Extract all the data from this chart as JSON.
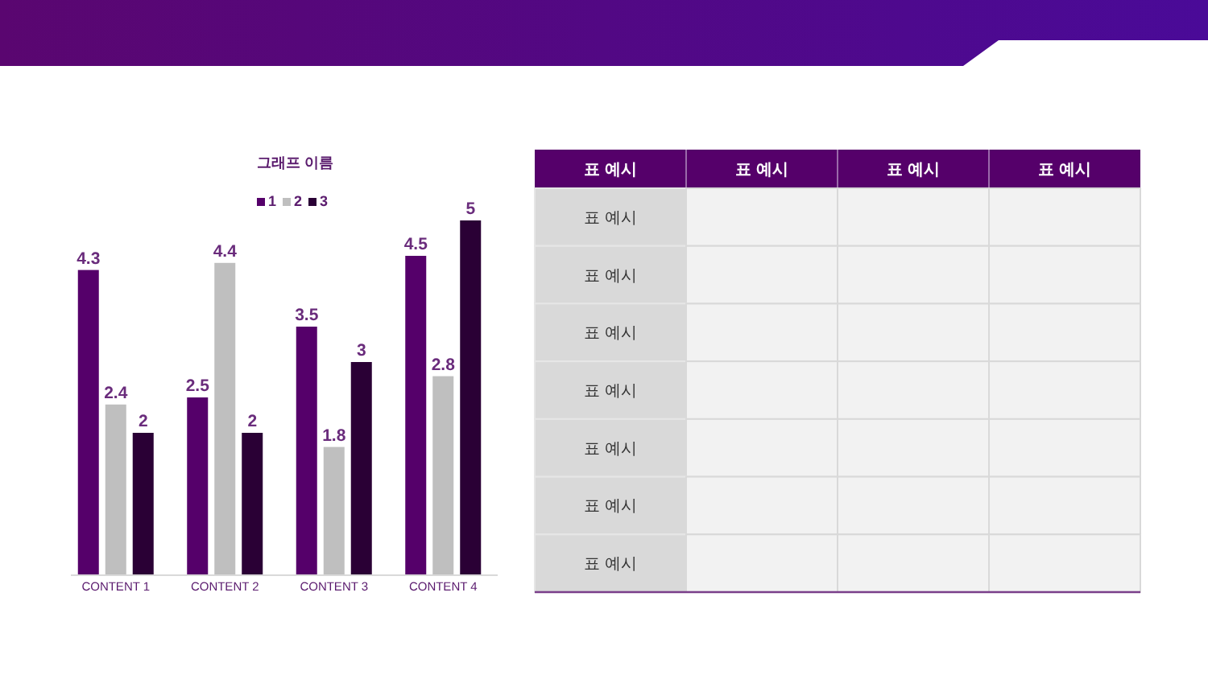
{
  "chart_data": [
    {
      "type": "bar",
      "title": "그래프 이름",
      "categories": [
        "CONTENT 1",
        "CONTENT 2",
        "CONTENT 3",
        "CONTENT 4"
      ],
      "series": [
        {
          "name": "1",
          "color": "#55006a",
          "values": [
            4.3,
            2.5,
            3.5,
            4.5
          ]
        },
        {
          "name": "2",
          "color": "#bfbfbf",
          "values": [
            2.4,
            4.4,
            1.8,
            2.8
          ]
        },
        {
          "name": "3",
          "color": "#2a0035",
          "values": [
            2,
            2,
            3,
            5
          ]
        }
      ],
      "data_labels": true,
      "legend": "top"
    },
    {
      "type": "other",
      "categories": [
        "표 예시",
        "표 예시",
        "표 예시",
        "표 예시"
      ],
      "y_categories": [
        "표 예시",
        "표 예시",
        "표 예시",
        "표 예시",
        "표 예시",
        "표 예시",
        "표 예시"
      ],
      "cells": [
        [
          null,
          null,
          null
        ],
        [
          null,
          null,
          null
        ],
        [
          null,
          null,
          null
        ],
        [
          null,
          null,
          null
        ],
        [
          null,
          null,
          null
        ],
        [
          null,
          null,
          null
        ],
        [
          null,
          null,
          null
        ]
      ]
    }
  ]
}
